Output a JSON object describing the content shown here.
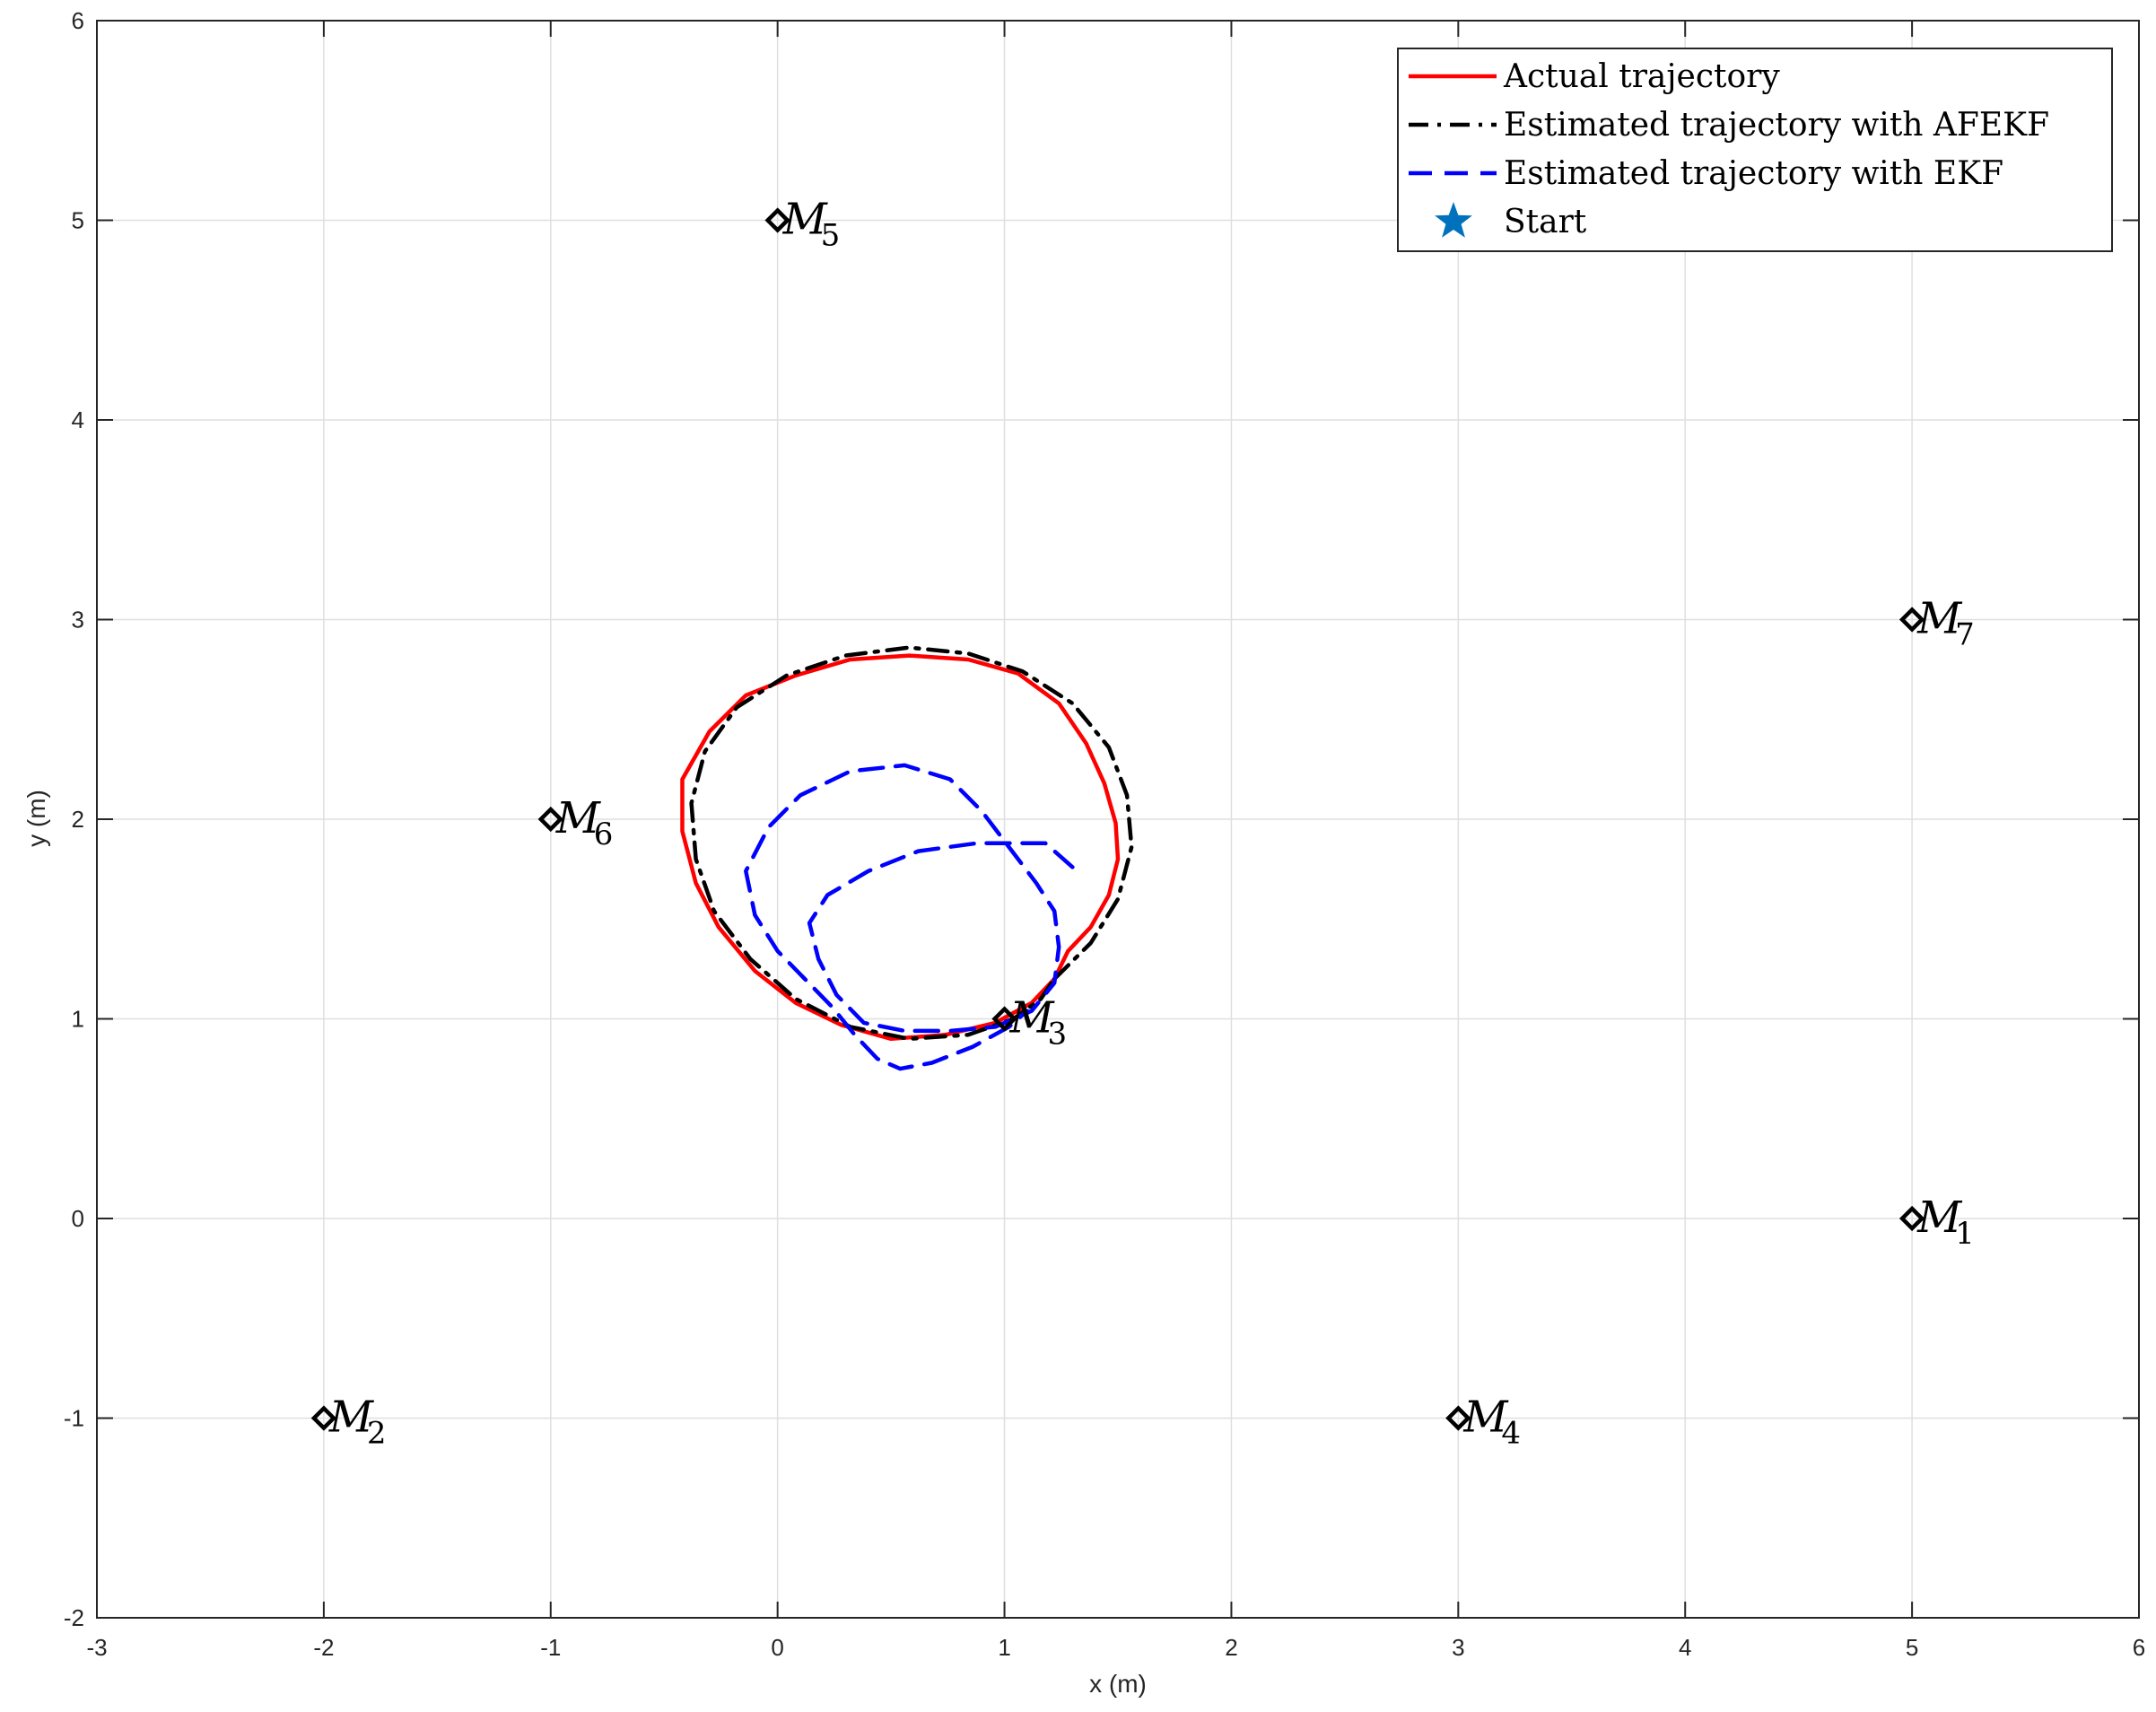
{
  "chart_data": {
    "type": "line",
    "xlabel": "x (m)",
    "ylabel": "y (m)",
    "xlim": [
      -3,
      6
    ],
    "ylim": [
      -2,
      6
    ],
    "xticks": [
      "-3",
      "-2",
      "-1",
      "0",
      "1",
      "2",
      "3",
      "4",
      "5",
      "6"
    ],
    "yticks": [
      "-2",
      "-1",
      "0",
      "1",
      "2",
      "3",
      "4",
      "5",
      "6"
    ],
    "grid": true,
    "legend_position": "top-right",
    "legend": [
      {
        "label": "Actual trajectory",
        "color": "#ff0000",
        "style": "solid"
      },
      {
        "label": "Estimated trajectory with AFEKF",
        "color": "#000000",
        "style": "dashdot"
      },
      {
        "label": "Estimated trajectory with EKF",
        "color": "#0000ff",
        "style": "dashed"
      },
      {
        "label": "Start",
        "color": "#0072bd",
        "style": "star-marker"
      }
    ],
    "landmarks": [
      {
        "name": "M",
        "sub": "1",
        "x": 5,
        "y": 0
      },
      {
        "name": "M",
        "sub": "2",
        "x": -2,
        "y": -1
      },
      {
        "name": "M",
        "sub": "3",
        "x": 1,
        "y": 1
      },
      {
        "name": "M",
        "sub": "4",
        "x": 3,
        "y": -1
      },
      {
        "name": "M",
        "sub": "5",
        "x": 0,
        "y": 5
      },
      {
        "name": "M",
        "sub": "6",
        "x": -1,
        "y": 2
      },
      {
        "name": "M",
        "sub": "7",
        "x": 5,
        "y": 3
      }
    ],
    "series": [
      {
        "key": "actual",
        "color": "#ff0000",
        "style": "solid",
        "points": [
          [
            1.28,
            1.34
          ],
          [
            1.38,
            1.46
          ],
          [
            1.46,
            1.62
          ],
          [
            1.5,
            1.8
          ],
          [
            1.49,
            1.98
          ],
          [
            1.44,
            2.18
          ],
          [
            1.36,
            2.38
          ],
          [
            1.24,
            2.58
          ],
          [
            1.06,
            2.73
          ],
          [
            0.84,
            2.8
          ],
          [
            0.58,
            2.82
          ],
          [
            0.32,
            2.8
          ],
          [
            0.08,
            2.72
          ],
          [
            -0.14,
            2.62
          ],
          [
            -0.3,
            2.44
          ],
          [
            -0.42,
            2.2
          ],
          [
            -0.42,
            1.94
          ],
          [
            -0.36,
            1.68
          ],
          [
            -0.26,
            1.46
          ],
          [
            -0.1,
            1.24
          ],
          [
            0.08,
            1.08
          ],
          [
            0.28,
            0.97
          ],
          [
            0.5,
            0.9
          ],
          [
            0.74,
            0.92
          ],
          [
            0.96,
            0.98
          ],
          [
            1.12,
            1.08
          ],
          [
            1.22,
            1.2
          ],
          [
            1.28,
            1.34
          ]
        ]
      },
      {
        "key": "afekf",
        "color": "#000000",
        "style": "dashdot",
        "points": [
          [
            1.22,
            1.2
          ],
          [
            1.38,
            1.38
          ],
          [
            1.5,
            1.6
          ],
          [
            1.56,
            1.86
          ],
          [
            1.54,
            2.12
          ],
          [
            1.46,
            2.36
          ],
          [
            1.3,
            2.58
          ],
          [
            1.08,
            2.74
          ],
          [
            0.84,
            2.83
          ],
          [
            0.58,
            2.86
          ],
          [
            0.3,
            2.82
          ],
          [
            0.04,
            2.72
          ],
          [
            -0.18,
            2.56
          ],
          [
            -0.32,
            2.34
          ],
          [
            -0.38,
            2.08
          ],
          [
            -0.36,
            1.8
          ],
          [
            -0.28,
            1.54
          ],
          [
            -0.12,
            1.3
          ],
          [
            0.08,
            1.1
          ],
          [
            0.32,
            0.96
          ],
          [
            0.58,
            0.9
          ],
          [
            0.84,
            0.92
          ],
          [
            1.04,
            1.0
          ],
          [
            1.16,
            1.1
          ],
          [
            1.22,
            1.2
          ]
        ]
      },
      {
        "key": "ekf",
        "color": "#0000ff",
        "style": "dashed",
        "points": [
          [
            1.3,
            1.76
          ],
          [
            1.18,
            1.88
          ],
          [
            1.06,
            1.88
          ],
          [
            0.88,
            1.88
          ],
          [
            0.62,
            1.84
          ],
          [
            0.4,
            1.74
          ],
          [
            0.22,
            1.62
          ],
          [
            0.14,
            1.48
          ],
          [
            0.18,
            1.3
          ],
          [
            0.26,
            1.12
          ],
          [
            0.38,
            0.98
          ],
          [
            0.56,
            0.94
          ],
          [
            0.76,
            0.94
          ],
          [
            0.96,
            0.96
          ],
          [
            1.12,
            1.04
          ],
          [
            1.22,
            1.18
          ],
          [
            1.24,
            1.36
          ],
          [
            1.22,
            1.54
          ],
          [
            1.14,
            1.68
          ],
          [
            1.02,
            1.86
          ],
          [
            0.9,
            2.04
          ],
          [
            0.76,
            2.2
          ],
          [
            0.56,
            2.27
          ],
          [
            0.32,
            2.24
          ],
          [
            0.1,
            2.12
          ],
          [
            -0.04,
            1.96
          ],
          [
            -0.14,
            1.74
          ],
          [
            -0.1,
            1.52
          ],
          [
            0.0,
            1.34
          ],
          [
            0.12,
            1.2
          ],
          [
            0.24,
            1.06
          ],
          [
            0.34,
            0.92
          ],
          [
            0.44,
            0.8
          ],
          [
            0.54,
            0.75
          ],
          [
            0.68,
            0.78
          ],
          [
            0.86,
            0.86
          ],
          [
            1.02,
            0.96
          ],
          [
            1.1,
            1.04
          ]
        ]
      }
    ]
  }
}
